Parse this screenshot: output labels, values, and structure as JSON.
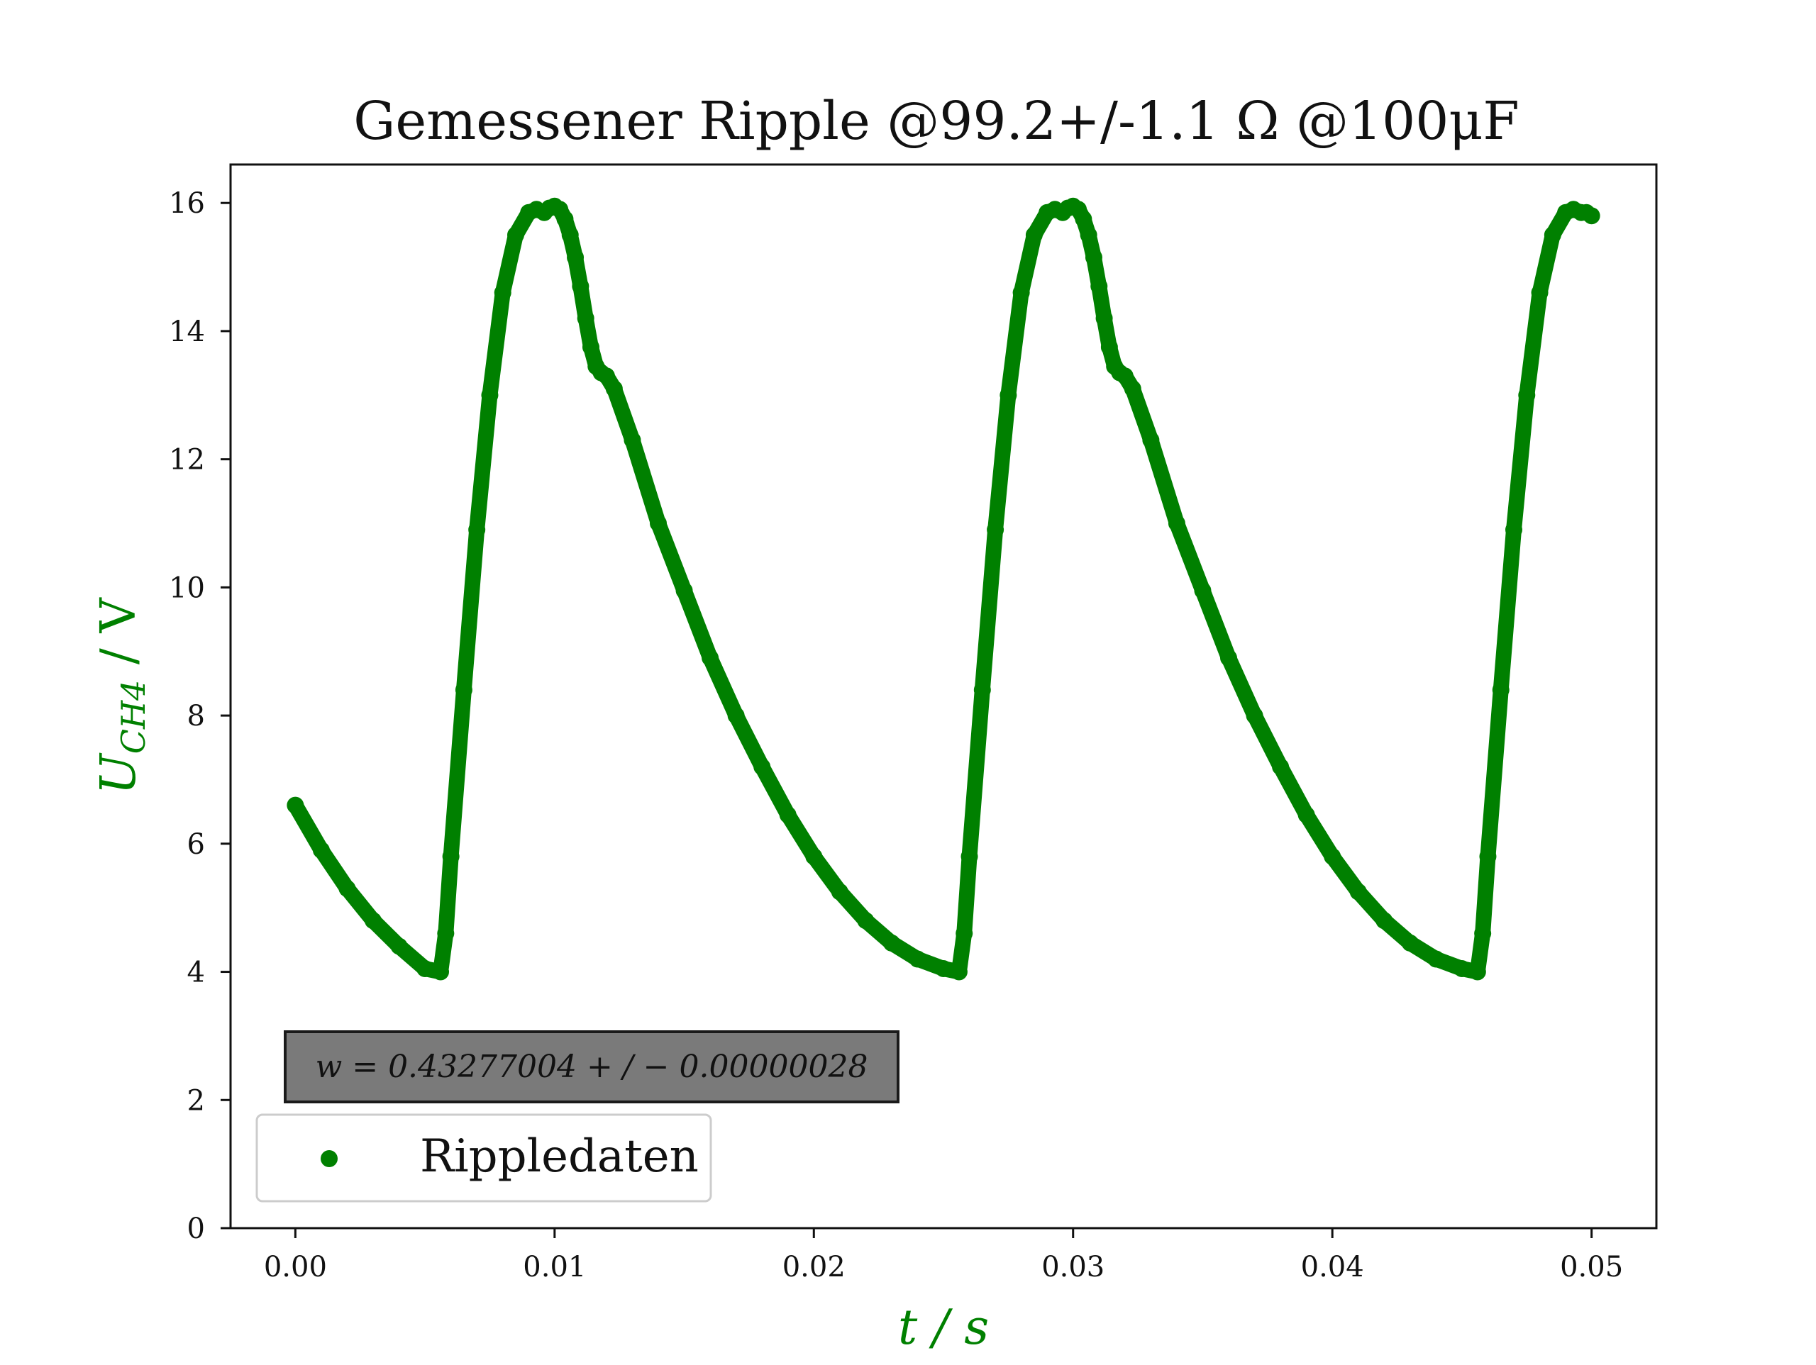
{
  "chart_data": {
    "type": "scatter",
    "title": "Gemessener Ripple @99.2+/-1.1 Ω @100μF",
    "xlabel": "t / s",
    "ylabel_main": "U",
    "ylabel_sub": "CH4",
    "ylabel_unit": " / V",
    "xlim": [
      -0.0025,
      0.0525
    ],
    "ylim": [
      0,
      16.6
    ],
    "x_ticks": [
      0.0,
      0.01,
      0.02,
      0.03,
      0.04,
      0.05
    ],
    "x_tick_labels": [
      "0.00",
      "0.01",
      "0.02",
      "0.03",
      "0.04",
      "0.05"
    ],
    "y_ticks": [
      0,
      2,
      4,
      6,
      8,
      10,
      12,
      14,
      16
    ],
    "y_tick_labels": [
      "0",
      "2",
      "4",
      "6",
      "8",
      "10",
      "12",
      "14",
      "16"
    ],
    "grid": false,
    "legend_position": "lower-left",
    "annotation": "w = 0.43277004 + / − 0.00000028",
    "series": [
      {
        "name": "Rippledaten",
        "color": "#008000",
        "marker": "dot",
        "x": [
          0.0,
          0.001,
          0.002,
          0.003,
          0.004,
          0.005,
          0.0056,
          0.0058,
          0.006,
          0.0065,
          0.007,
          0.0075,
          0.008,
          0.0085,
          0.009,
          0.0093,
          0.0096,
          0.0098,
          0.01,
          0.0102,
          0.0104,
          0.0106,
          0.0108,
          0.011,
          0.0112,
          0.0114,
          0.0116,
          0.0118,
          0.012,
          0.0123,
          0.013,
          0.014,
          0.015,
          0.016,
          0.017,
          0.018,
          0.019,
          0.02,
          0.021,
          0.022,
          0.023,
          0.024,
          0.025,
          0.0256,
          0.0258,
          0.026,
          0.0265,
          0.027,
          0.0275,
          0.028,
          0.0285,
          0.029,
          0.0293,
          0.0296,
          0.0298,
          0.03,
          0.0302,
          0.0304,
          0.0306,
          0.0308,
          0.031,
          0.0312,
          0.0314,
          0.0316,
          0.0318,
          0.032,
          0.0323,
          0.033,
          0.034,
          0.035,
          0.036,
          0.037,
          0.038,
          0.039,
          0.04,
          0.041,
          0.042,
          0.043,
          0.044,
          0.045,
          0.0456,
          0.0458,
          0.046,
          0.0465,
          0.047,
          0.0475,
          0.048,
          0.0485,
          0.049,
          0.0493,
          0.0496,
          0.0498,
          0.05
        ],
        "y": [
          6.6,
          5.9,
          5.3,
          4.8,
          4.4,
          4.05,
          4.0,
          4.6,
          5.8,
          8.4,
          10.9,
          13.0,
          14.6,
          15.5,
          15.85,
          15.9,
          15.85,
          15.92,
          15.95,
          15.9,
          15.75,
          15.5,
          15.15,
          14.7,
          14.2,
          13.75,
          13.45,
          13.35,
          13.3,
          13.1,
          12.3,
          11.0,
          9.95,
          8.9,
          8.0,
          7.2,
          6.45,
          5.8,
          5.25,
          4.8,
          4.45,
          4.2,
          4.05,
          4.0,
          4.6,
          5.8,
          8.4,
          10.9,
          13.0,
          14.6,
          15.5,
          15.85,
          15.9,
          15.85,
          15.92,
          15.95,
          15.9,
          15.75,
          15.5,
          15.15,
          14.7,
          14.2,
          13.75,
          13.45,
          13.35,
          13.3,
          13.1,
          12.3,
          11.0,
          9.95,
          8.9,
          8.0,
          7.2,
          6.45,
          5.8,
          5.25,
          4.8,
          4.45,
          4.2,
          4.05,
          4.0,
          4.6,
          5.8,
          8.4,
          10.9,
          13.0,
          14.6,
          15.5,
          15.85,
          15.9,
          15.85,
          15.85,
          15.8
        ]
      }
    ]
  },
  "colors": {
    "data": "#008000",
    "axis_label": "#008000",
    "annotation_bg": "#7a7a7a"
  }
}
